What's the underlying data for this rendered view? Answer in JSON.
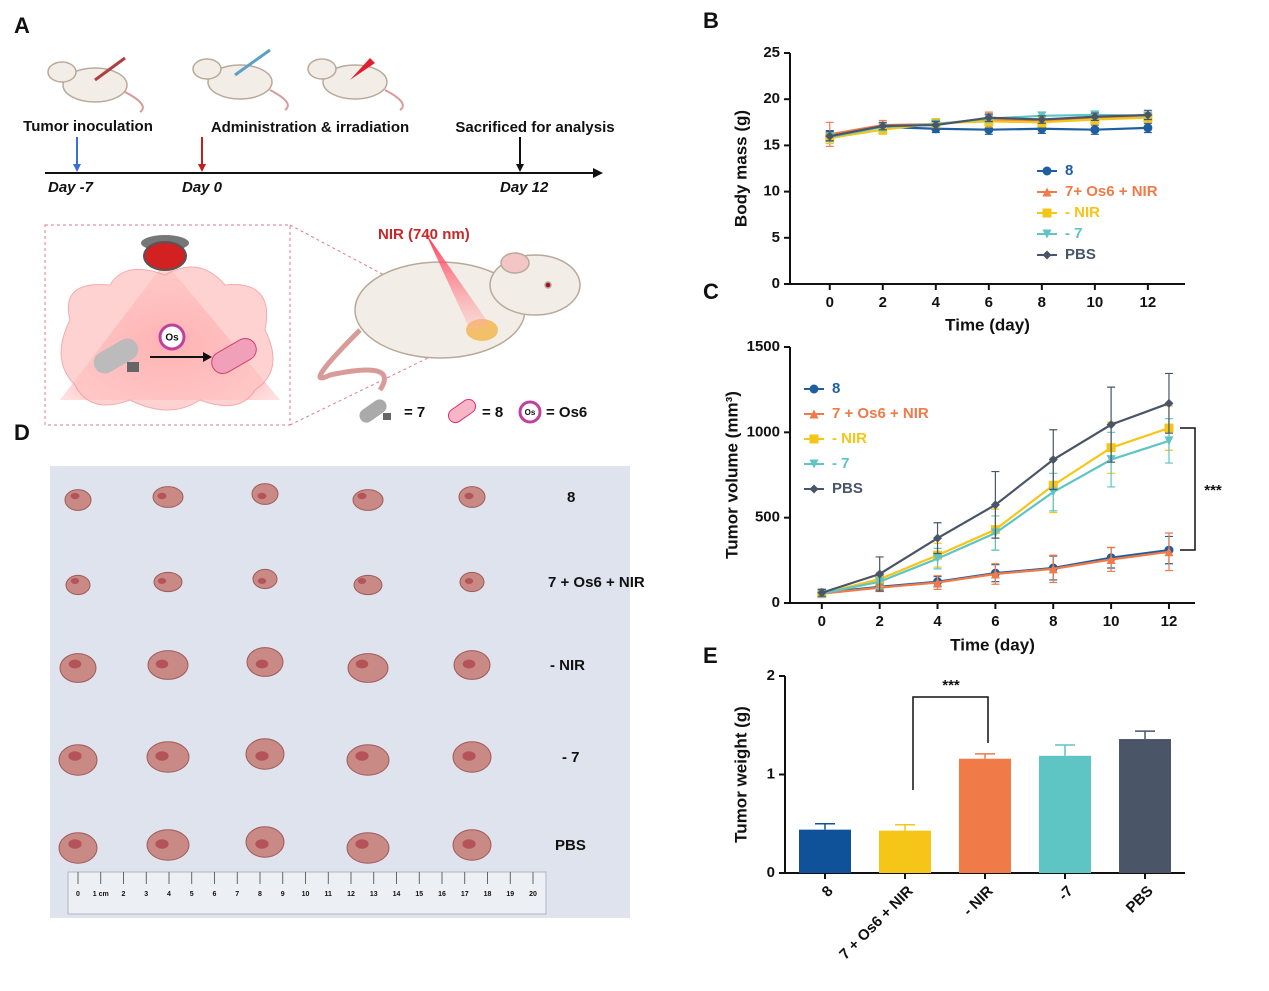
{
  "panel_labels": [
    "A",
    "B",
    "C",
    "D",
    "E"
  ],
  "schematic": {
    "steps": [
      "Tumor inoculation",
      "Administration & irradiation",
      "Sacrificed for analysis"
    ],
    "days": [
      "Day -7",
      "Day 0",
      "Day 12"
    ],
    "light": "NIR (740 nm)",
    "drug_label": "Os",
    "key": [
      "= 7",
      "= 8",
      "= Os6"
    ],
    "key_icon_label": "Os"
  },
  "photo": {
    "groups": [
      "8",
      "7 + Os6 + NIR",
      "- NIR",
      "- 7",
      "PBS"
    ],
    "ruler_labels": [
      "0",
      "1 cm",
      "2",
      "3",
      "4",
      "5",
      "6",
      "7",
      "8",
      "9",
      "10",
      "11",
      "12",
      "13",
      "14",
      "15",
      "16",
      "17",
      "18",
      "19",
      "20"
    ]
  },
  "chart_data": [
    {
      "type": "line",
      "y_label": "Body mass (g)",
      "x_label": "Time (day)",
      "x": [
        0,
        2,
        4,
        6,
        8,
        10,
        12
      ],
      "xlim": [
        -1.5,
        13.4
      ],
      "xticks": [
        0,
        2,
        4,
        6,
        8,
        10,
        12
      ],
      "ylim": [
        0,
        25
      ],
      "yticks": [
        0,
        5,
        10,
        15,
        20,
        25
      ],
      "series": [
        {
          "name": "8",
          "color": "#1f5fa0",
          "values": [
            16.1,
            17.0,
            16.8,
            16.7,
            16.8,
            16.7,
            16.9
          ],
          "errors": [
            0.5,
            0.4,
            0.4,
            0.5,
            0.5,
            0.5,
            0.5
          ]
        },
        {
          "name": "7+ Os6 + NIR",
          "color": "#f07a48",
          "values": [
            16.2,
            17.2,
            17.3,
            17.8,
            17.6,
            17.9,
            18.1
          ],
          "errors": [
            1.3,
            0.5,
            0.4,
            0.8,
            0.5,
            0.6,
            0.5
          ]
        },
        {
          "name": "- NIR",
          "color": "#f5c518",
          "values": [
            15.8,
            16.7,
            17.4,
            17.6,
            17.5,
            17.8,
            18.0
          ],
          "errors": [
            0.6,
            0.5,
            0.5,
            0.6,
            0.5,
            0.5,
            0.5
          ]
        },
        {
          "name": "- 7",
          "color": "#5ec4c4",
          "values": [
            15.9,
            17.0,
            17.3,
            17.9,
            18.2,
            18.3,
            18.2
          ],
          "errors": [
            0.5,
            0.4,
            0.4,
            0.4,
            0.4,
            0.4,
            0.4
          ]
        },
        {
          "name": "PBS",
          "color": "#4a5568",
          "values": [
            16.0,
            17.1,
            17.2,
            18.0,
            17.8,
            18.1,
            18.3
          ],
          "errors": [
            0.5,
            0.4,
            0.4,
            0.4,
            0.4,
            0.4,
            0.5
          ]
        }
      ]
    },
    {
      "type": "line",
      "y_label": "Tumor volume (mm³)",
      "x_label": "Time (day)",
      "annotation": "***",
      "x": [
        0,
        2,
        4,
        6,
        8,
        10,
        12
      ],
      "xlim": [
        -1.1,
        12.9
      ],
      "xticks": [
        0,
        2,
        4,
        6,
        8,
        10,
        12
      ],
      "ylim": [
        0,
        1500
      ],
      "yticks": [
        0,
        500,
        1000,
        1500
      ],
      "series": [
        {
          "name": "8",
          "color": "#1f5fa0",
          "values": [
            60,
            95,
            125,
            175,
            205,
            265,
            310
          ],
          "errors": [
            20,
            20,
            30,
            50,
            70,
            60,
            80
          ]
        },
        {
          "name": "7 + Os6 + NIR",
          "color": "#f07a48",
          "values": [
            55,
            90,
            120,
            170,
            200,
            255,
            300
          ],
          "errors": [
            20,
            20,
            40,
            60,
            80,
            70,
            110
          ]
        },
        {
          "name": "- NIR",
          "color": "#f5c518",
          "values": [
            55,
            140,
            280,
            430,
            690,
            910,
            1025
          ],
          "errors": [
            20,
            40,
            70,
            120,
            160,
            150,
            130
          ]
        },
        {
          "name": "- 7",
          "color": "#5ec4c4",
          "values": [
            55,
            125,
            260,
            410,
            650,
            840,
            950
          ],
          "errors": [
            20,
            40,
            60,
            100,
            110,
            160,
            130
          ]
        },
        {
          "name": "PBS",
          "color": "#4a5568",
          "values": [
            60,
            170,
            380,
            575,
            840,
            1045,
            1170
          ],
          "errors": [
            20,
            100,
            90,
            195,
            175,
            220,
            175
          ]
        }
      ]
    },
    {
      "type": "bar",
      "y_label": "Tumor weight (g)",
      "annotation": "***",
      "categories": [
        "8",
        "7 + Os6 + NIR",
        "- NIR",
        "-7",
        "PBS"
      ],
      "values": [
        0.44,
        0.43,
        1.16,
        1.19,
        1.36
      ],
      "errors": [
        0.06,
        0.06,
        0.05,
        0.11,
        0.08
      ],
      "colors": [
        "#0f5299",
        "#f5c518",
        "#f07a48",
        "#5ec4c4",
        "#4a5568"
      ],
      "ylim": [
        0,
        2
      ],
      "yticks": [
        0,
        1,
        2
      ]
    }
  ]
}
